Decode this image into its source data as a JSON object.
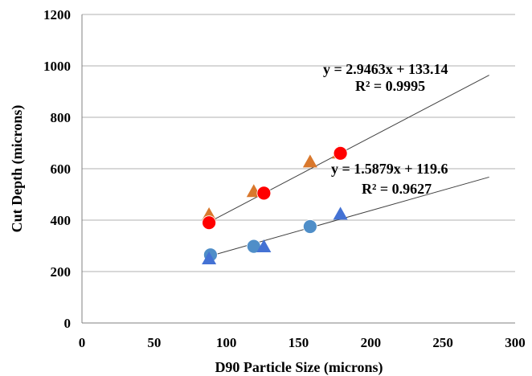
{
  "chart_data": {
    "type": "scatter",
    "title": "",
    "xlabel": "D90 Particle Size  (microns)",
    "ylabel": "Cut Depth  (microns)",
    "xlim": [
      0,
      300
    ],
    "ylim": [
      0,
      1200
    ],
    "x_ticks": [
      "0",
      "50",
      "100",
      "150",
      "200",
      "250",
      "300"
    ],
    "y_ticks": [
      "0",
      "200",
      "400",
      "600",
      "800",
      "1000",
      "1200"
    ],
    "grid": "horizontal",
    "series": [
      {
        "marker": "triangle",
        "color": "#d9782d",
        "points": [
          [
            88,
            420
          ],
          [
            119,
            510
          ],
          [
            158,
            625
          ],
          [
            178,
            660
          ]
        ]
      },
      {
        "marker": "circle",
        "color": "#ff0000",
        "points": [
          [
            88,
            390
          ],
          [
            126,
            505
          ],
          [
            179,
            660
          ]
        ]
      },
      {
        "marker": "circle",
        "color": "#4f8ec8",
        "points": [
          [
            89,
            265
          ],
          [
            119,
            298
          ],
          [
            158,
            375
          ]
        ]
      },
      {
        "marker": "triangle",
        "color": "#4472d4",
        "points": [
          [
            88,
            248
          ],
          [
            126,
            295
          ],
          [
            179,
            422
          ]
        ]
      }
    ],
    "trendlines": [
      {
        "slope": 2.9463,
        "intercept": 133.14,
        "x_range": [
          88,
          282
        ],
        "equation": "y = 2.9463x + 133.14",
        "r2": "R² = 0.9995"
      },
      {
        "slope": 1.5879,
        "intercept": 119.6,
        "x_range": [
          88,
          282
        ],
        "equation": "y = 1.5879x + 119.6",
        "r2": "R² = 0.9627"
      }
    ]
  }
}
